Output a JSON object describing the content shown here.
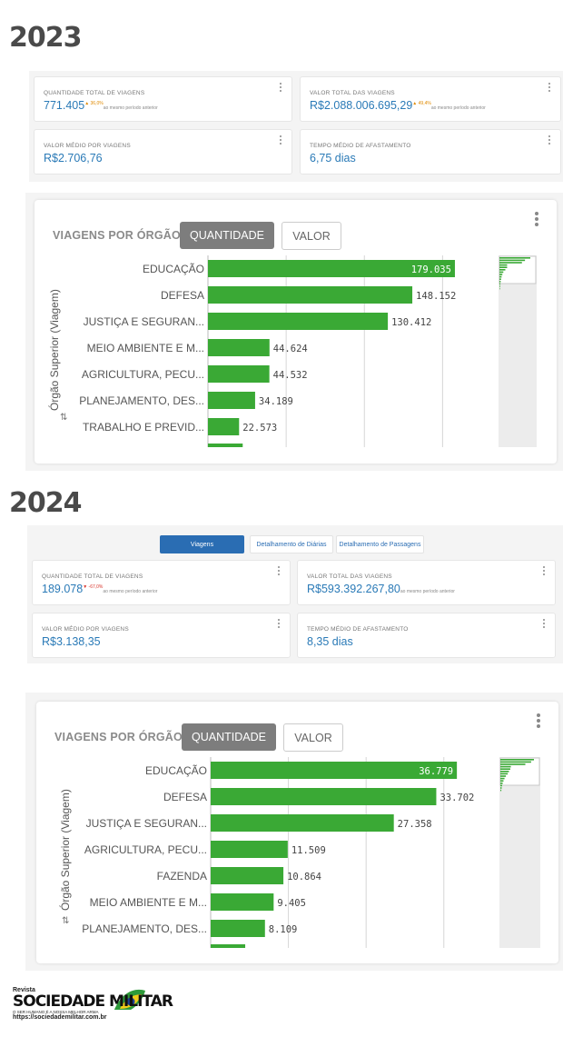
{
  "s2023": {
    "year": "2023",
    "cards": [
      {
        "label": "QUANTIDADE TOTAL DE VIAGENS",
        "value": "771.405",
        "delta": "▲ 36,0%",
        "delta_dir": "up",
        "sub": "ao mesmo período anterior"
      },
      {
        "label": "VALOR TOTAL DAS VIAGENS",
        "value": "R$2.088.006.695,29",
        "delta": "▲ 49,4%",
        "delta_dir": "up",
        "sub": "ao mesmo período anterior"
      },
      {
        "label": "VALOR MÉDIO POR VIAGENS",
        "value": "R$2.706,76"
      },
      {
        "label": "TEMPO MÉDIO DE AFASTAMENTO",
        "value": "6,75 dias"
      }
    ],
    "chart_title": "VIAGENS POR ÓRGÃO",
    "btn_quantidade": "QUANTIDADE",
    "btn_valor": "VALOR",
    "y_axis_label": "Órgão Superior (Viagem)"
  },
  "s2024": {
    "year": "2024",
    "tabs": [
      "Viagens",
      "Detalhamento de Diárias",
      "Detalhamento de Passagens"
    ],
    "cards": [
      {
        "label": "QUANTIDADE TOTAL DE VIAGENS",
        "value": "189.078",
        "delta": "▼ -67,0%",
        "delta_dir": "down",
        "sub": "ao mesmo período anterior"
      },
      {
        "label": "VALOR TOTAL DAS VIAGENS",
        "value": "R$593.392.267,80",
        "delta": "",
        "delta_dir": "",
        "sub": "ao mesmo período anterior"
      },
      {
        "label": "VALOR MÉDIO POR VIAGENS",
        "value": "R$3.138,35"
      },
      {
        "label": "TEMPO MÉDIO DE AFASTAMENTO",
        "value": "8,35 dias"
      }
    ],
    "chart_title": "VIAGENS POR ÓRGÃO",
    "btn_quantidade": "QUANTIDADE",
    "btn_valor": "VALOR",
    "y_axis_label": "Órgão Superior (Viagem)"
  },
  "chart_data": [
    {
      "type": "bar",
      "orientation": "horizontal",
      "categories": [
        "EDUCAÇÃO",
        "DEFESA",
        "JUSTIÇA E SEGURAN...",
        "MEIO AMBIENTE E M...",
        "AGRICULTURA, PECU...",
        "PLANEJAMENTO, DES...",
        "TRABALHO E PREVID..."
      ],
      "values": [
        179035,
        148152,
        130412,
        44624,
        44532,
        34189,
        22573
      ],
      "labels": [
        "179.035",
        "148.152",
        "130.412",
        "44.624",
        "44.532",
        "34.189",
        "22.573"
      ],
      "ylabel": "Órgão Superior (Viagem)",
      "color": "#3aa935",
      "xlim": [
        0,
        210000
      ]
    },
    {
      "type": "bar",
      "orientation": "horizontal",
      "categories": [
        "EDUCAÇÃO",
        "DEFESA",
        "JUSTIÇA E SEGURAN...",
        "AGRICULTURA, PECU...",
        "FAZENDA",
        "MEIO AMBIENTE E M...",
        "PLANEJAMENTO, DES..."
      ],
      "values": [
        36779,
        33702,
        27358,
        11509,
        10864,
        9405,
        8109
      ],
      "labels": [
        "36.779",
        "33.702",
        "27.358",
        "11.509",
        "10.864",
        "9.405",
        "8.109"
      ],
      "ylabel": "Órgão Superior (Viagem)",
      "color": "#3aa935",
      "xlim": [
        0,
        43000
      ]
    }
  ],
  "logo": {
    "small": "Revista",
    "big": "SOCIEDADE MILITAR",
    "tagline": "O SER HUMANO É A NOSSA MELHOR ARMA",
    "url": "https://sociedademilitar.com.br"
  }
}
